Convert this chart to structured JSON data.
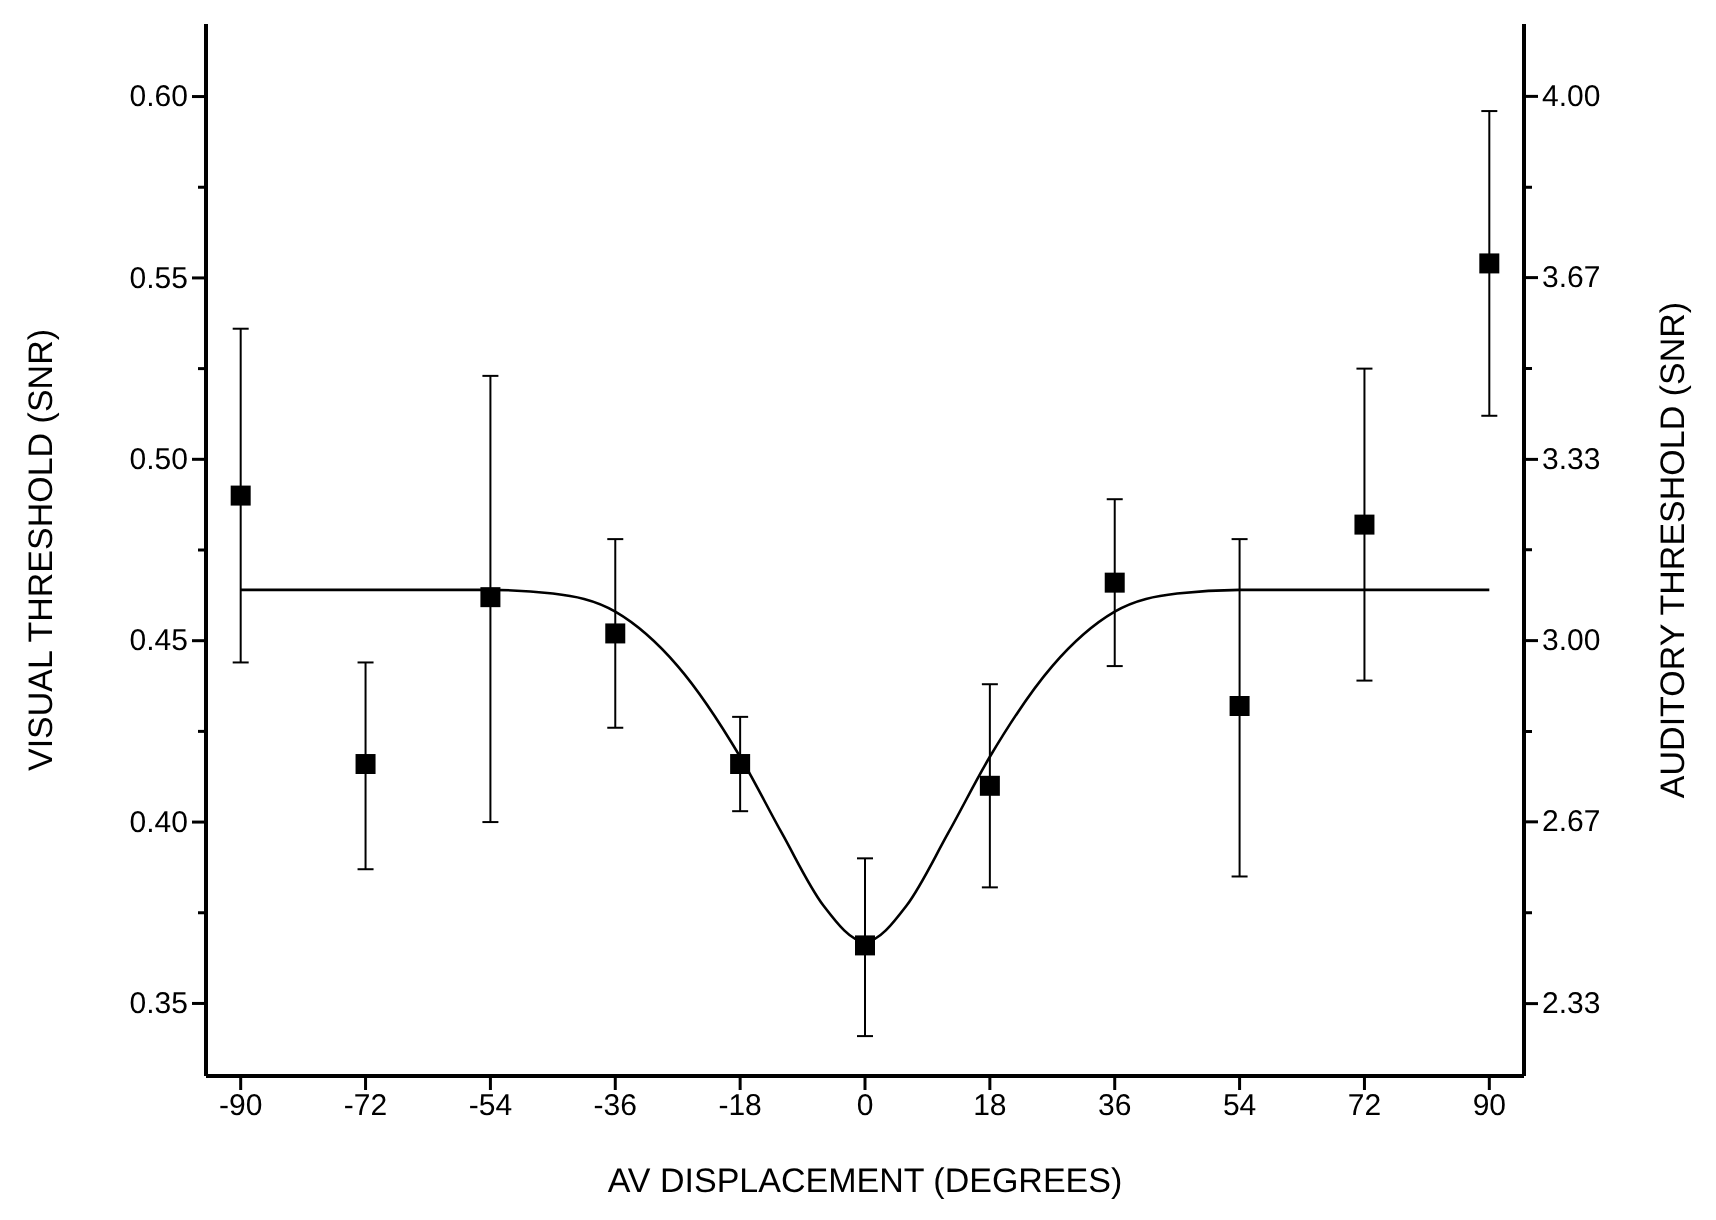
{
  "chart_data": {
    "type": "scatter",
    "xlabel": "AV DISPLACEMENT (DEGREES)",
    "ylabel": "VISUAL THRESHOLD (SNR)",
    "y2label": "AUDITORY THRESHOLD (SNR)",
    "xlim": [
      -95,
      95
    ],
    "xticks": [
      -90,
      -72,
      -54,
      -36,
      -18,
      0,
      18,
      36,
      54,
      72,
      90
    ],
    "ylim": [
      0.33,
      0.62
    ],
    "yticks": [
      {
        "value": 0.35,
        "label": "0.35"
      },
      {
        "value": 0.375,
        "label": null
      },
      {
        "value": 0.4,
        "label": "0.40"
      },
      {
        "value": 0.425,
        "label": null
      },
      {
        "value": 0.45,
        "label": "0.45"
      },
      {
        "value": 0.475,
        "label": null
      },
      {
        "value": 0.5,
        "label": "0.50"
      },
      {
        "value": 0.525,
        "label": null
      },
      {
        "value": 0.55,
        "label": "0.55"
      },
      {
        "value": 0.575,
        "label": null
      },
      {
        "value": 0.6,
        "label": "0.60"
      }
    ],
    "y2lim": [
      2.2,
      4.133
    ],
    "y2ticks": [
      {
        "value": 2.333,
        "label": "2.33"
      },
      {
        "value": 2.5,
        "label": null
      },
      {
        "value": 2.667,
        "label": "2.67"
      },
      {
        "value": 2.833,
        "label": null
      },
      {
        "value": 3,
        "label": "3.00"
      },
      {
        "value": 3.167,
        "label": null
      },
      {
        "value": 3.333,
        "label": "3.33"
      },
      {
        "value": 3.5,
        "label": null
      },
      {
        "value": 3.667,
        "label": "3.67"
      },
      {
        "value": 3.833,
        "label": null
      },
      {
        "value": 4,
        "label": "4.00"
      }
    ],
    "grid": false,
    "series": [
      {
        "marker": "square",
        "color": "#000000",
        "x": [
          -90,
          -72,
          -54,
          -36,
          -18,
          0,
          18,
          36,
          54,
          72,
          90
        ],
        "values": [
          0.49,
          0.416,
          0.462,
          0.452,
          0.416,
          0.366,
          0.41,
          0.466,
          0.432,
          0.482,
          0.554
        ],
        "errors": [
          [
            0.444,
            0.536
          ],
          [
            0.387,
            0.444
          ],
          [
            0.4,
            0.523
          ],
          [
            0.426,
            0.478
          ],
          [
            0.403,
            0.429
          ],
          [
            0.341,
            0.39
          ],
          [
            0.382,
            0.438
          ],
          [
            0.443,
            0.489
          ],
          [
            0.385,
            0.478
          ],
          [
            0.439,
            0.525
          ],
          [
            0.512,
            0.596
          ]
        ]
      },
      {
        "type": "line",
        "marker": "none",
        "line_style": "solid",
        "color": "#000000",
        "x": [
          -90,
          -54,
          -45,
          -36,
          -27,
          -18,
          -12,
          -6,
          0,
          6,
          12,
          18,
          27,
          36,
          45,
          54,
          90
        ],
        "values": [
          0.464,
          0.464,
          0.463,
          0.458,
          0.443,
          0.418,
          0.397,
          0.377,
          0.367,
          0.377,
          0.397,
          0.418,
          0.443,
          0.458,
          0.463,
          0.464,
          0.464
        ]
      }
    ]
  }
}
